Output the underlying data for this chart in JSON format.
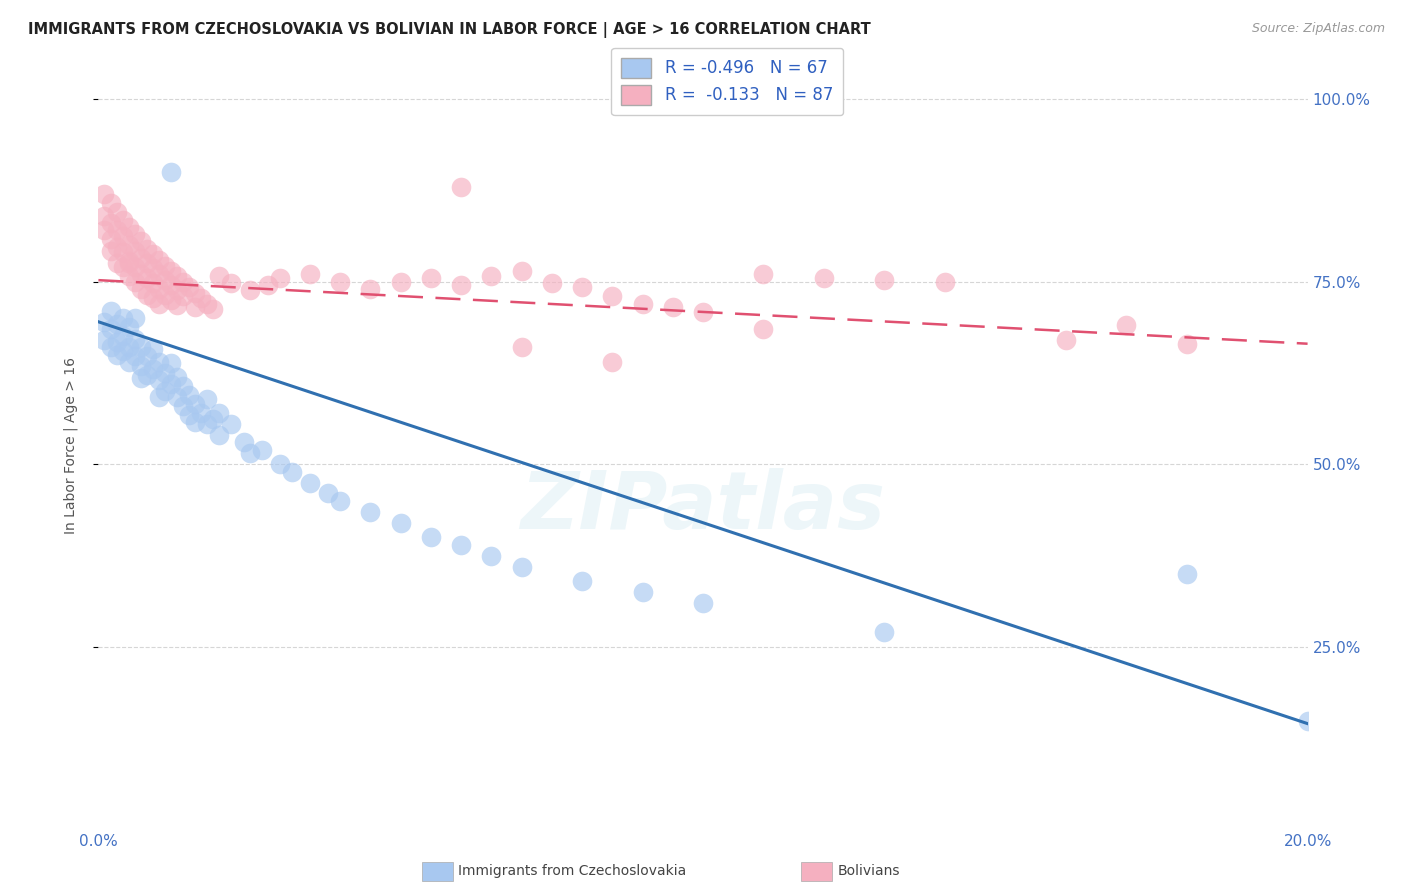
{
  "title": "IMMIGRANTS FROM CZECHOSLOVAKIA VS BOLIVIAN IN LABOR FORCE | AGE > 16 CORRELATION CHART",
  "source": "Source: ZipAtlas.com",
  "ylabel": "In Labor Force | Age > 16",
  "x_min": 0.0,
  "x_max": 0.2,
  "y_min": 0.0,
  "y_max": 1.05,
  "yticks": [
    0.25,
    0.5,
    0.75,
    1.0
  ],
  "ytick_labels": [
    "25.0%",
    "50.0%",
    "75.0%",
    "100.0%"
  ],
  "xtick_vals": [
    0.0,
    0.04,
    0.08,
    0.12,
    0.16,
    0.2
  ],
  "xtick_labels": [
    "0.0%",
    "",
    "",
    "",
    "",
    "20.0%"
  ],
  "series": [
    {
      "name": "Immigrants from Czechoslovakia",
      "color": "#a8c8f0",
      "R": -0.496,
      "N": 67,
      "trend_color": "#3070b0"
    },
    {
      "name": "Bolivians",
      "color": "#f5b0c0",
      "R": -0.133,
      "N": 87,
      "trend_color": "#e05070"
    }
  ],
  "background_color": "#ffffff",
  "grid_color": "#cccccc",
  "blue_trend": [
    0.695,
    0.145
  ],
  "pink_trend": [
    0.752,
    0.665
  ],
  "czecho_points": [
    [
      0.001,
      0.695
    ],
    [
      0.001,
      0.67
    ],
    [
      0.002,
      0.685
    ],
    [
      0.002,
      0.66
    ],
    [
      0.002,
      0.71
    ],
    [
      0.003,
      0.692
    ],
    [
      0.003,
      0.668
    ],
    [
      0.003,
      0.65
    ],
    [
      0.004,
      0.7
    ],
    [
      0.004,
      0.675
    ],
    [
      0.004,
      0.655
    ],
    [
      0.005,
      0.688
    ],
    [
      0.005,
      0.66
    ],
    [
      0.005,
      0.64
    ],
    [
      0.006,
      0.672
    ],
    [
      0.006,
      0.648
    ],
    [
      0.006,
      0.7
    ],
    [
      0.007,
      0.66
    ],
    [
      0.007,
      0.635
    ],
    [
      0.007,
      0.618
    ],
    [
      0.008,
      0.648
    ],
    [
      0.008,
      0.622
    ],
    [
      0.009,
      0.658
    ],
    [
      0.009,
      0.63
    ],
    [
      0.01,
      0.64
    ],
    [
      0.01,
      0.615
    ],
    [
      0.01,
      0.592
    ],
    [
      0.011,
      0.625
    ],
    [
      0.011,
      0.6
    ],
    [
      0.012,
      0.638
    ],
    [
      0.012,
      0.61
    ],
    [
      0.013,
      0.62
    ],
    [
      0.013,
      0.592
    ],
    [
      0.014,
      0.607
    ],
    [
      0.014,
      0.58
    ],
    [
      0.015,
      0.595
    ],
    [
      0.015,
      0.567
    ],
    [
      0.016,
      0.582
    ],
    [
      0.016,
      0.558
    ],
    [
      0.017,
      0.57
    ],
    [
      0.018,
      0.59
    ],
    [
      0.018,
      0.555
    ],
    [
      0.019,
      0.562
    ],
    [
      0.02,
      0.57
    ],
    [
      0.02,
      0.54
    ],
    [
      0.022,
      0.555
    ],
    [
      0.024,
      0.53
    ],
    [
      0.025,
      0.515
    ],
    [
      0.027,
      0.52
    ],
    [
      0.03,
      0.5
    ],
    [
      0.032,
      0.49
    ],
    [
      0.035,
      0.475
    ],
    [
      0.038,
      0.46
    ],
    [
      0.04,
      0.45
    ],
    [
      0.045,
      0.435
    ],
    [
      0.05,
      0.42
    ],
    [
      0.055,
      0.4
    ],
    [
      0.06,
      0.39
    ],
    [
      0.065,
      0.375
    ],
    [
      0.07,
      0.36
    ],
    [
      0.012,
      0.9
    ],
    [
      0.08,
      0.34
    ],
    [
      0.09,
      0.325
    ],
    [
      0.1,
      0.31
    ],
    [
      0.13,
      0.27
    ],
    [
      0.18,
      0.35
    ],
    [
      0.2,
      0.148
    ]
  ],
  "bolivian_points": [
    [
      0.001,
      0.87
    ],
    [
      0.001,
      0.84
    ],
    [
      0.001,
      0.82
    ],
    [
      0.002,
      0.858
    ],
    [
      0.002,
      0.83
    ],
    [
      0.002,
      0.808
    ],
    [
      0.002,
      0.792
    ],
    [
      0.003,
      0.845
    ],
    [
      0.003,
      0.82
    ],
    [
      0.003,
      0.798
    ],
    [
      0.003,
      0.775
    ],
    [
      0.004,
      0.835
    ],
    [
      0.004,
      0.812
    ],
    [
      0.004,
      0.79
    ],
    [
      0.004,
      0.77
    ],
    [
      0.005,
      0.825
    ],
    [
      0.005,
      0.8
    ],
    [
      0.005,
      0.778
    ],
    [
      0.005,
      0.758
    ],
    [
      0.005,
      0.775
    ],
    [
      0.006,
      0.815
    ],
    [
      0.006,
      0.792
    ],
    [
      0.006,
      0.77
    ],
    [
      0.006,
      0.75
    ],
    [
      0.007,
      0.805
    ],
    [
      0.007,
      0.782
    ],
    [
      0.007,
      0.76
    ],
    [
      0.007,
      0.74
    ],
    [
      0.008,
      0.795
    ],
    [
      0.008,
      0.775
    ],
    [
      0.008,
      0.755
    ],
    [
      0.008,
      0.732
    ],
    [
      0.009,
      0.788
    ],
    [
      0.009,
      0.768
    ],
    [
      0.009,
      0.748
    ],
    [
      0.009,
      0.728
    ],
    [
      0.01,
      0.78
    ],
    [
      0.01,
      0.76
    ],
    [
      0.01,
      0.74
    ],
    [
      0.01,
      0.72
    ],
    [
      0.011,
      0.772
    ],
    [
      0.011,
      0.752
    ],
    [
      0.011,
      0.732
    ],
    [
      0.012,
      0.765
    ],
    [
      0.012,
      0.745
    ],
    [
      0.012,
      0.725
    ],
    [
      0.013,
      0.758
    ],
    [
      0.013,
      0.738
    ],
    [
      0.013,
      0.718
    ],
    [
      0.014,
      0.75
    ],
    [
      0.014,
      0.73
    ],
    [
      0.015,
      0.742
    ],
    [
      0.016,
      0.735
    ],
    [
      0.016,
      0.715
    ],
    [
      0.017,
      0.728
    ],
    [
      0.018,
      0.72
    ],
    [
      0.019,
      0.712
    ],
    [
      0.02,
      0.758
    ],
    [
      0.022,
      0.748
    ],
    [
      0.025,
      0.738
    ],
    [
      0.028,
      0.745
    ],
    [
      0.03,
      0.755
    ],
    [
      0.035,
      0.76
    ],
    [
      0.04,
      0.75
    ],
    [
      0.045,
      0.74
    ],
    [
      0.05,
      0.75
    ],
    [
      0.055,
      0.755
    ],
    [
      0.06,
      0.745
    ],
    [
      0.065,
      0.758
    ],
    [
      0.07,
      0.765
    ],
    [
      0.075,
      0.748
    ],
    [
      0.08,
      0.742
    ],
    [
      0.085,
      0.73
    ],
    [
      0.09,
      0.72
    ],
    [
      0.095,
      0.715
    ],
    [
      0.1,
      0.708
    ],
    [
      0.11,
      0.76
    ],
    [
      0.12,
      0.755
    ],
    [
      0.13,
      0.752
    ],
    [
      0.14,
      0.75
    ],
    [
      0.06,
      0.88
    ],
    [
      0.11,
      0.685
    ],
    [
      0.07,
      0.66
    ],
    [
      0.085,
      0.64
    ],
    [
      0.16,
      0.67
    ],
    [
      0.17,
      0.69
    ],
    [
      0.18,
      0.665
    ]
  ]
}
